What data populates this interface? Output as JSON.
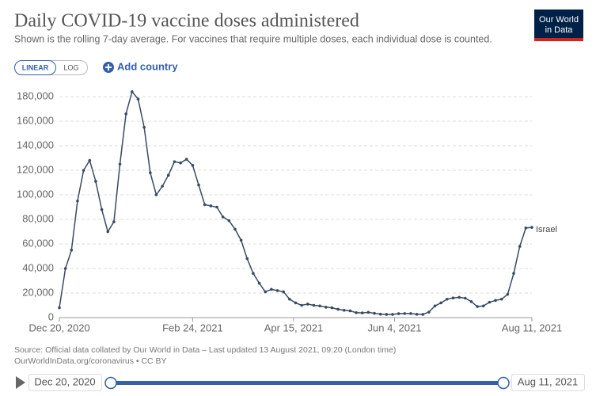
{
  "chart_data": {
    "type": "line",
    "title": "Daily COVID-19 vaccine doses administered",
    "subtitle": "Shown is the rolling 7-day average. For vaccines that require multiple doses, each individual dose is counted.",
    "logo": [
      "Our World",
      "in Data"
    ],
    "scale_buttons": [
      "LINEAR",
      "LOG"
    ],
    "add_button": "Add country",
    "source": "Source: Official data collated by Our World in Data – Last updated 13 August 2021, 09:20 (London time)",
    "source_url": "OurWorldInData.org/coronavirus • CC BY",
    "x": [
      "2020-12-20",
      "2020-12-23",
      "2020-12-26",
      "2020-12-29",
      "2021-01-01",
      "2021-01-04",
      "2021-01-07",
      "2021-01-10",
      "2021-01-13",
      "2021-01-16",
      "2021-01-19",
      "2021-01-22",
      "2021-01-25",
      "2021-01-28",
      "2021-01-31",
      "2021-02-03",
      "2021-02-06",
      "2021-02-09",
      "2021-02-12",
      "2021-02-15",
      "2021-02-18",
      "2021-02-21",
      "2021-02-24",
      "2021-02-27",
      "2021-03-02",
      "2021-03-05",
      "2021-03-08",
      "2021-03-11",
      "2021-03-14",
      "2021-03-17",
      "2021-03-20",
      "2021-03-23",
      "2021-03-26",
      "2021-03-29",
      "2021-04-01",
      "2021-04-04",
      "2021-04-07",
      "2021-04-10",
      "2021-04-13",
      "2021-04-16",
      "2021-04-19",
      "2021-04-22",
      "2021-04-25",
      "2021-04-28",
      "2021-05-01",
      "2021-05-04",
      "2021-05-07",
      "2021-05-10",
      "2021-05-13",
      "2021-05-16",
      "2021-05-19",
      "2021-05-22",
      "2021-05-25",
      "2021-05-28",
      "2021-05-31",
      "2021-06-03",
      "2021-06-06",
      "2021-06-09",
      "2021-06-12",
      "2021-06-15",
      "2021-06-18",
      "2021-06-21",
      "2021-06-24",
      "2021-06-27",
      "2021-06-30",
      "2021-07-03",
      "2021-07-06",
      "2021-07-09",
      "2021-07-12",
      "2021-07-15",
      "2021-07-18",
      "2021-07-21",
      "2021-07-24",
      "2021-07-27",
      "2021-07-30",
      "2021-08-02",
      "2021-08-05",
      "2021-08-08",
      "2021-08-11"
    ],
    "series": [
      {
        "name": "Israel",
        "color": "#3a4a63",
        "values": [
          8000,
          40000,
          55000,
          95000,
          120000,
          128000,
          111000,
          88000,
          70000,
          78000,
          125000,
          166000,
          184000,
          178000,
          155000,
          118000,
          100000,
          107000,
          116000,
          127000,
          126000,
          129000,
          124000,
          108000,
          92000,
          91000,
          90000,
          82000,
          79000,
          72000,
          63000,
          48000,
          36000,
          28000,
          21000,
          23000,
          22000,
          21000,
          15000,
          12000,
          10000,
          11000,
          10000,
          9500,
          8500,
          8000,
          6800,
          6000,
          5500,
          4000,
          3800,
          4300,
          3500,
          2800,
          2600,
          2600,
          3200,
          3300,
          3300,
          2700,
          2600,
          4500,
          9500,
          12000,
          15000,
          16000,
          16500,
          15800,
          13000,
          9000,
          9500,
          12500,
          14000,
          15000,
          19000,
          36000,
          58000,
          73000,
          73500
        ]
      }
    ],
    "xlim": [
      "2020-12-20",
      "2021-08-11"
    ],
    "xticks": [
      {
        "value": "2020-12-20",
        "label": "Dec 20, 2020"
      },
      {
        "value": "2021-02-24",
        "label": "Feb 24, 2021"
      },
      {
        "value": "2021-04-15",
        "label": "Apr 15, 2021"
      },
      {
        "value": "2021-06-04",
        "label": "Jun 4, 2021"
      },
      {
        "value": "2021-08-11",
        "label": "Aug 11, 2021"
      }
    ],
    "ylim": [
      0,
      180000
    ],
    "yticks": [
      0,
      {
        "value": 20000,
        "label": "20,000"
      },
      {
        "value": 40000,
        "label": "40,000"
      },
      {
        "value": 60000,
        "label": "60,000"
      },
      {
        "value": 80000,
        "label": "80,000"
      },
      {
        "value": 100000,
        "label": "100,000"
      },
      {
        "value": 120000,
        "label": "120,000"
      },
      {
        "value": 140000,
        "label": "140,000"
      },
      {
        "value": 160000,
        "label": "160,000"
      },
      {
        "value": 180000,
        "label": "180,000"
      }
    ],
    "grid": true
  }
}
